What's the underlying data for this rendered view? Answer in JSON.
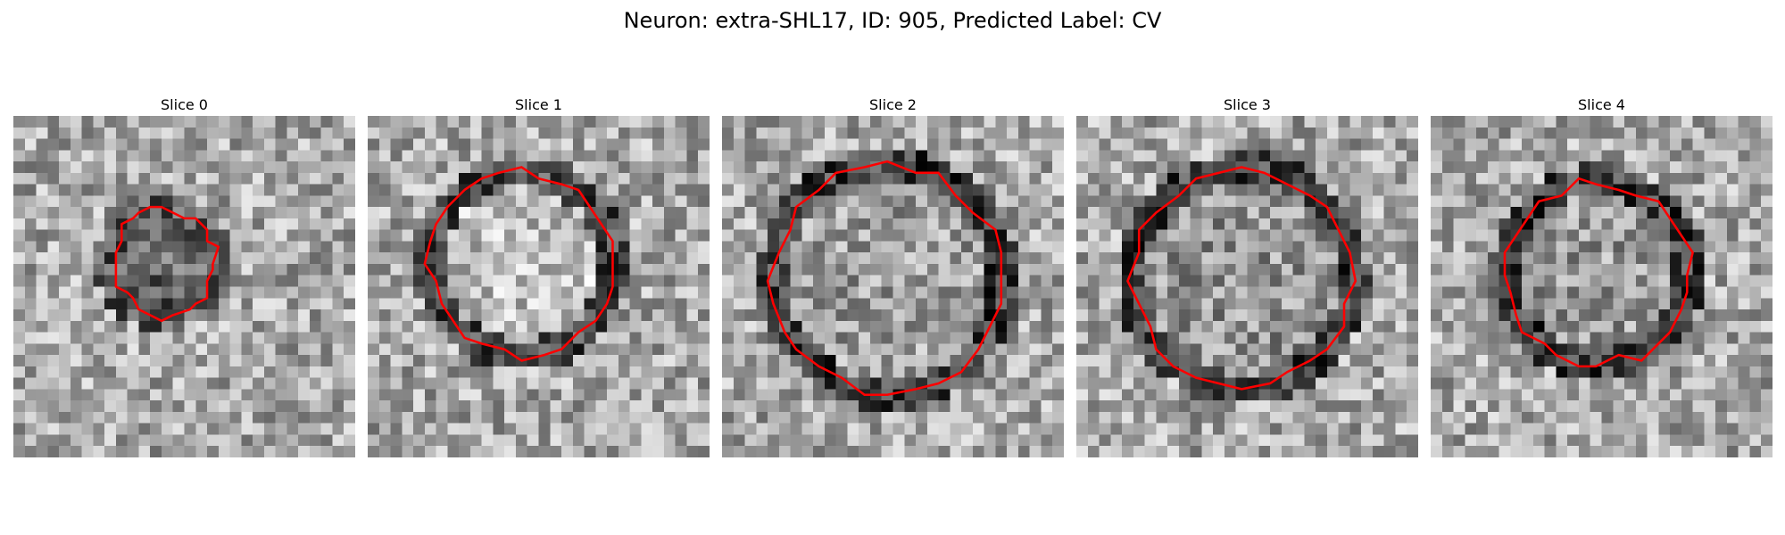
{
  "figure": {
    "title": "Neuron: extra-SHL17, ID: 905, Predicted Label: CV"
  },
  "contour_color": "#ff0000",
  "colormap": "gray",
  "panels": [
    {
      "title": "Slice 0",
      "seed": 11,
      "vesicle": {
        "cx": 13.2,
        "cy": 12.8,
        "r": 4.6,
        "interior_tone": 0.4,
        "ring_tone": 0.35
      }
    },
    {
      "title": "Slice 1",
      "seed": 23,
      "vesicle": {
        "cx": 13.5,
        "cy": 13.0,
        "r": 8.0,
        "interior_tone": 0.75,
        "ring_tone": 0.3
      }
    },
    {
      "title": "Slice 2",
      "seed": 37,
      "vesicle": {
        "cx": 14.6,
        "cy": 14.3,
        "r": 10.0,
        "interior_tone": 0.62,
        "ring_tone": 0.25
      }
    },
    {
      "title": "Slice 3",
      "seed": 41,
      "vesicle": {
        "cx": 14.6,
        "cy": 14.3,
        "r": 9.6,
        "interior_tone": 0.58,
        "ring_tone": 0.25
      }
    },
    {
      "title": "Slice 4",
      "seed": 53,
      "vesicle": {
        "cx": 14.7,
        "cy": 13.8,
        "r": 8.0,
        "interior_tone": 0.6,
        "ring_tone": 0.25
      }
    }
  ]
}
